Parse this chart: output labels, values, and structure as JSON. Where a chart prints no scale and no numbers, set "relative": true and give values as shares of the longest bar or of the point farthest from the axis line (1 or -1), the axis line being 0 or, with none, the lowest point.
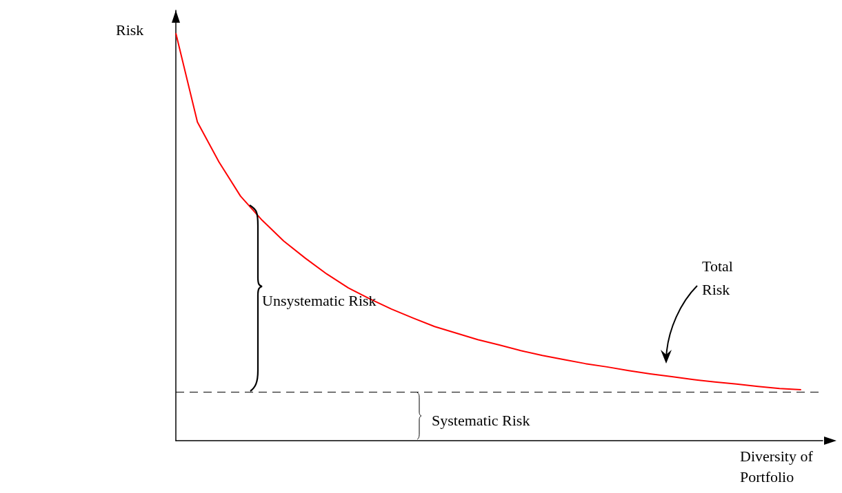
{
  "chart_data": {
    "type": "line",
    "relative": true,
    "xlabel": "Diversity of Portfolio",
    "ylabel": "Risk",
    "categories": [
      null,
      null,
      null,
      null,
      null,
      null,
      null,
      null,
      null,
      null,
      null,
      null,
      null,
      null,
      null,
      null,
      null,
      null,
      null,
      null,
      null,
      null,
      null,
      null,
      null,
      null,
      null,
      null,
      null,
      null,
      null
    ],
    "series": [
      {
        "color": "#ff0000",
        "values": [
          1,
          0.782,
          0.684,
          0.6,
          0.541,
          0.49,
          0.448,
          0.409,
          0.375,
          0.348,
          0.323,
          0.301,
          0.28,
          0.264,
          0.248,
          0.235,
          0.221,
          0.209,
          0.199,
          0.189,
          0.181,
          0.172,
          0.164,
          0.157,
          0.15,
          0.144,
          0.139,
          0.133,
          0.128,
          0.125,
          null
        ]
      }
    ],
    "ref_lines": [
      {
        "axis": "y",
        "value": 0.123,
        "color": "#000000",
        "line_style": "dashed"
      }
    ],
    "annotations": [
      "Unsystematic Risk",
      "Total Risk",
      "Systematic Risk"
    ],
    "marker": "none",
    "line_style": "solid"
  }
}
